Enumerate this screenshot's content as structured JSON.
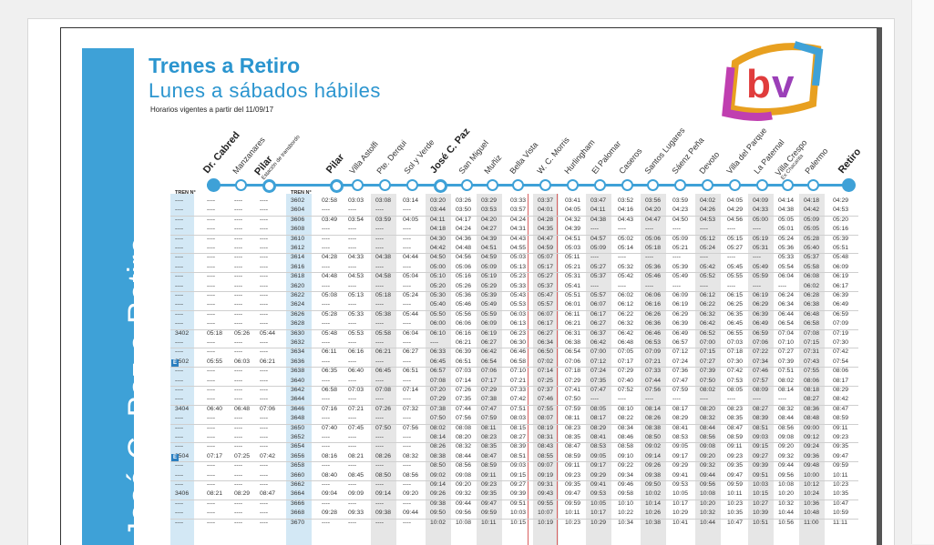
{
  "document": {
    "vertical_title": "José C. Paz a Retiro",
    "title": "Trenes a Retiro",
    "subtitle": "Lunes a sábados hábiles",
    "validity": "Horarios vigentes a partir del 11/09/17",
    "logo_text": "bv"
  },
  "header": {
    "tren_label": "TREN N°"
  },
  "stations": [
    {
      "name": "Dr. Cabred",
      "sub": "",
      "bold": true
    },
    {
      "name": "Manzanares",
      "sub": "",
      "bold": false
    },
    {
      "name": "Pilar",
      "sub": "Estación de transbordo",
      "bold": true
    },
    {
      "name": "Pilar",
      "sub": "",
      "bold": true
    },
    {
      "name": "Villa Astolfi",
      "sub": "",
      "bold": false
    },
    {
      "name": "Pte. Derqui",
      "sub": "",
      "bold": false
    },
    {
      "name": "Sol y Verde",
      "sub": "",
      "bold": false
    },
    {
      "name": "José C. Paz",
      "sub": "",
      "bold": true
    },
    {
      "name": "San Miguel",
      "sub": "",
      "bold": false
    },
    {
      "name": "Muñiz",
      "sub": "",
      "bold": false
    },
    {
      "name": "Bella Vista",
      "sub": "",
      "bold": false
    },
    {
      "name": "W. C. Morris",
      "sub": "",
      "bold": false
    },
    {
      "name": "Hurlingham",
      "sub": "",
      "bold": false
    },
    {
      "name": "El Palomar",
      "sub": "",
      "bold": false
    },
    {
      "name": "Caseros",
      "sub": "",
      "bold": false
    },
    {
      "name": "Santos Lugares",
      "sub": "",
      "bold": false
    },
    {
      "name": "Sáenz Peña",
      "sub": "",
      "bold": false
    },
    {
      "name": "Devoto",
      "sub": "",
      "bold": false
    },
    {
      "name": "Villa del Parque",
      "sub": "",
      "bold": false
    },
    {
      "name": "La Paternal",
      "sub": "",
      "bold": false
    },
    {
      "name": "Villa Crespo",
      "sub": "Ex Chacarita",
      "bold": false
    },
    {
      "name": "Palermo",
      "sub": "",
      "bold": false
    },
    {
      "name": "Retiro",
      "sub": "",
      "bold": true
    }
  ],
  "rows": [
    [
      "----",
      "----",
      "----",
      "----",
      "3602",
      "02:58",
      "03:03",
      "03:08",
      "03:14",
      "03:20",
      "03:26",
      "03:29",
      "03:33",
      "03:37",
      "03:41",
      "03:47",
      "03:52",
      "03:56",
      "03:59",
      "04:02",
      "04:05",
      "04:09",
      "04:14",
      "04:18",
      "04:29"
    ],
    [
      "----",
      "----",
      "----",
      "----",
      "3604",
      "----",
      "----",
      "----",
      "----",
      "03:44",
      "03:50",
      "03:53",
      "03:57",
      "04:01",
      "04:05",
      "04:11",
      "04:16",
      "04:20",
      "04:23",
      "04:26",
      "04:29",
      "04:33",
      "04:38",
      "04:42",
      "04:53"
    ],
    [
      "----",
      "----",
      "----",
      "----",
      "3606",
      "03:49",
      "03:54",
      "03:59",
      "04:05",
      "04:11",
      "04:17",
      "04:20",
      "04:24",
      "04:28",
      "04:32",
      "04:38",
      "04:43",
      "04:47",
      "04:50",
      "04:53",
      "04:56",
      "05:00",
      "05:05",
      "05:09",
      "05:20"
    ],
    [
      "----",
      "----",
      "----",
      "----",
      "3608",
      "----",
      "----",
      "----",
      "----",
      "04:18",
      "04:24",
      "04:27",
      "04:31",
      "04:35",
      "04:39",
      "----",
      "----",
      "----",
      "----",
      "----",
      "----",
      "----",
      "05:01",
      "05:05",
      "05:16"
    ],
    [
      "----",
      "----",
      "----",
      "----",
      "3610",
      "----",
      "----",
      "----",
      "----",
      "04:30",
      "04:36",
      "04:39",
      "04:43",
      "04:47",
      "04:51",
      "04:57",
      "05:02",
      "05:06",
      "05:09",
      "05:12",
      "05:15",
      "05:19",
      "05:24",
      "05:28",
      "05:39"
    ],
    [
      "----",
      "----",
      "----",
      "----",
      "3612",
      "----",
      "----",
      "----",
      "----",
      "04:42",
      "04:48",
      "04:51",
      "04:55",
      "04:59",
      "05:03",
      "05:09",
      "05:14",
      "05:18",
      "05:21",
      "05:24",
      "05:27",
      "05:31",
      "05:36",
      "05:40",
      "05:51"
    ],
    [
      "----",
      "----",
      "----",
      "----",
      "3614",
      "04:28",
      "04:33",
      "04:38",
      "04:44",
      "04:50",
      "04:56",
      "04:59",
      "05:03",
      "05:07",
      "05:11",
      "----",
      "----",
      "----",
      "----",
      "----",
      "----",
      "----",
      "05:33",
      "05:37",
      "05:48"
    ],
    [
      "----",
      "----",
      "----",
      "----",
      "3616",
      "----",
      "----",
      "----",
      "----",
      "05:00",
      "05:06",
      "05:09",
      "05:13",
      "05:17",
      "05:21",
      "05:27",
      "05:32",
      "05:36",
      "05:39",
      "05:42",
      "05:45",
      "05:49",
      "05:54",
      "05:58",
      "06:09"
    ],
    [
      "----",
      "----",
      "----",
      "----",
      "3618",
      "04:48",
      "04:53",
      "04:58",
      "05:04",
      "05:10",
      "05:16",
      "05:19",
      "05:23",
      "05:27",
      "05:31",
      "05:37",
      "05:42",
      "05:46",
      "05:49",
      "05:52",
      "05:55",
      "05:59",
      "06:04",
      "06:08",
      "06:19"
    ],
    [
      "----",
      "----",
      "----",
      "----",
      "3620",
      "----",
      "----",
      "----",
      "----",
      "05:20",
      "05:26",
      "05:29",
      "05:33",
      "05:37",
      "05:41",
      "----",
      "----",
      "----",
      "----",
      "----",
      "----",
      "----",
      "----",
      "06:02",
      "06:17"
    ],
    [
      "----",
      "----",
      "----",
      "----",
      "3622",
      "05:08",
      "05:13",
      "05:18",
      "05:24",
      "05:30",
      "05:36",
      "05:39",
      "05:43",
      "05:47",
      "05:51",
      "05:57",
      "06:02",
      "06:06",
      "06:09",
      "06:12",
      "06:15",
      "06:19",
      "06:24",
      "06:28",
      "06:39"
    ],
    [
      "----",
      "----",
      "----",
      "----",
      "3624",
      "----",
      "----",
      "----",
      "----",
      "05:40",
      "05:46",
      "05:49",
      "05:53",
      "05:57",
      "06:01",
      "06:07",
      "06:12",
      "06:16",
      "06:19",
      "06:22",
      "06:25",
      "06:29",
      "06:34",
      "06:38",
      "06:49"
    ],
    [
      "----",
      "----",
      "----",
      "----",
      "3626",
      "05:28",
      "05:33",
      "05:38",
      "05:44",
      "05:50",
      "05:56",
      "05:59",
      "06:03",
      "06:07",
      "06:11",
      "06:17",
      "06:22",
      "06:26",
      "06:29",
      "06:32",
      "06:35",
      "06:39",
      "06:44",
      "06:48",
      "06:59"
    ],
    [
      "----",
      "----",
      "----",
      "----",
      "3628",
      "----",
      "----",
      "----",
      "----",
      "06:00",
      "06:06",
      "06:09",
      "06:13",
      "06:17",
      "06:21",
      "06:27",
      "06:32",
      "06:36",
      "06:39",
      "06:42",
      "06:45",
      "06:49",
      "06:54",
      "06:58",
      "07:09"
    ],
    [
      "3402",
      "05:18",
      "05:26",
      "05:44",
      "3630",
      "05:48",
      "05:53",
      "05:58",
      "06:04",
      "06:10",
      "06:16",
      "06:19",
      "06:23",
      "06:27",
      "06:31",
      "06:37",
      "06:42",
      "06:46",
      "06:49",
      "06:52",
      "06:55",
      "06:59",
      "07:04",
      "07:08",
      "07:19"
    ],
    [
      "----",
      "----",
      "----",
      "----",
      "3632",
      "----",
      "----",
      "----",
      "----",
      "----",
      "06:21",
      "06:27",
      "06:30",
      "06:34",
      "06:38",
      "06:42",
      "06:48",
      "06:53",
      "06:57",
      "07:00",
      "07:03",
      "07:06",
      "07:10",
      "07:15",
      "07:30"
    ],
    [
      "----",
      "----",
      "----",
      "----",
      "3634",
      "06:11",
      "06:16",
      "06:21",
      "06:27",
      "06:33",
      "06:39",
      "06:42",
      "06:46",
      "06:50",
      "06:54",
      "07:00",
      "07:05",
      "07:09",
      "07:12",
      "07:15",
      "07:18",
      "07:22",
      "07:27",
      "07:31",
      "07:42"
    ],
    [
      "3502",
      "05:55",
      "06:03",
      "06:21",
      "3636",
      "----",
      "----",
      "----",
      "----",
      "06:45",
      "06:51",
      "06:54",
      "06:58",
      "07:02",
      "07:06",
      "07:12",
      "07:17",
      "07:21",
      "07:24",
      "07:27",
      "07:30",
      "07:34",
      "07:39",
      "07:43",
      "07:54"
    ],
    [
      "----",
      "----",
      "----",
      "----",
      "3638",
      "06:35",
      "06:40",
      "06:45",
      "06:51",
      "06:57",
      "07:03",
      "07:06",
      "07:10",
      "07:14",
      "07:18",
      "07:24",
      "07:29",
      "07:33",
      "07:36",
      "07:39",
      "07:42",
      "07:46",
      "07:51",
      "07:55",
      "08:06"
    ],
    [
      "----",
      "----",
      "----",
      "----",
      "3640",
      "----",
      "----",
      "----",
      "----",
      "07:08",
      "07:14",
      "07:17",
      "07:21",
      "07:25",
      "07:29",
      "07:35",
      "07:40",
      "07:44",
      "07:47",
      "07:50",
      "07:53",
      "07:57",
      "08:02",
      "08:06",
      "08:17"
    ],
    [
      "----",
      "----",
      "----",
      "----",
      "3642",
      "06:58",
      "07:03",
      "07:08",
      "07:14",
      "07:20",
      "07:26",
      "07:29",
      "07:33",
      "07:37",
      "07:41",
      "07:47",
      "07:52",
      "07:56",
      "07:59",
      "08:02",
      "08:05",
      "08:09",
      "08:14",
      "08:18",
      "08:29"
    ],
    [
      "----",
      "----",
      "----",
      "----",
      "3644",
      "----",
      "----",
      "----",
      "----",
      "07:29",
      "07:35",
      "07:38",
      "07:42",
      "07:46",
      "07:50",
      "----",
      "----",
      "----",
      "----",
      "----",
      "----",
      "----",
      "----",
      "08:27",
      "08:42"
    ],
    [
      "3404",
      "06:40",
      "06:48",
      "07:06",
      "3646",
      "07:16",
      "07:21",
      "07:26",
      "07:32",
      "07:38",
      "07:44",
      "07:47",
      "07:51",
      "07:55",
      "07:59",
      "08:05",
      "08:10",
      "08:14",
      "08:17",
      "08:20",
      "08:23",
      "08:27",
      "08:32",
      "08:36",
      "08:47"
    ],
    [
      "----",
      "----",
      "----",
      "----",
      "3648",
      "----",
      "----",
      "----",
      "----",
      "07:50",
      "07:56",
      "07:59",
      "08:03",
      "08:07",
      "08:11",
      "08:17",
      "08:22",
      "08:26",
      "08:29",
      "08:32",
      "08:35",
      "08:39",
      "08:44",
      "08:48",
      "08:59"
    ],
    [
      "----",
      "----",
      "----",
      "----",
      "3650",
      "07:40",
      "07:45",
      "07:50",
      "07:56",
      "08:02",
      "08:08",
      "08:11",
      "08:15",
      "08:19",
      "08:23",
      "08:29",
      "08:34",
      "08:38",
      "08:41",
      "08:44",
      "08:47",
      "08:51",
      "08:56",
      "09:00",
      "09:11"
    ],
    [
      "----",
      "----",
      "----",
      "----",
      "3652",
      "----",
      "----",
      "----",
      "----",
      "08:14",
      "08:20",
      "08:23",
      "08:27",
      "08:31",
      "08:35",
      "08:41",
      "08:46",
      "08:50",
      "08:53",
      "08:56",
      "08:59",
      "09:03",
      "09:08",
      "09:12",
      "09:23"
    ],
    [
      "----",
      "----",
      "----",
      "----",
      "3654",
      "----",
      "----",
      "----",
      "----",
      "08:26",
      "08:32",
      "08:35",
      "08:39",
      "08:43",
      "08:47",
      "08:53",
      "08:58",
      "09:02",
      "09:05",
      "09:08",
      "09:11",
      "09:15",
      "09:20",
      "09:24",
      "09:35"
    ],
    [
      "3504",
      "07:17",
      "07:25",
      "07:42",
      "3656",
      "08:16",
      "08:21",
      "08:26",
      "08:32",
      "08:38",
      "08:44",
      "08:47",
      "08:51",
      "08:55",
      "08:59",
      "09:05",
      "09:10",
      "09:14",
      "09:17",
      "09:20",
      "09:23",
      "09:27",
      "09:32",
      "09:36",
      "09:47"
    ],
    [
      "----",
      "----",
      "----",
      "----",
      "3658",
      "----",
      "----",
      "----",
      "----",
      "08:50",
      "08:56",
      "08:59",
      "09:03",
      "09:07",
      "09:11",
      "09:17",
      "09:22",
      "09:26",
      "09:29",
      "09:32",
      "09:35",
      "09:39",
      "09:44",
      "09:48",
      "09:59"
    ],
    [
      "----",
      "----",
      "----",
      "----",
      "3660",
      "08:40",
      "08:45",
      "08:50",
      "08:56",
      "09:02",
      "09:08",
      "09:11",
      "09:15",
      "09:19",
      "09:23",
      "09:29",
      "09:34",
      "09:38",
      "09:41",
      "09:44",
      "09:47",
      "09:51",
      "09:56",
      "10:00",
      "10:11"
    ],
    [
      "----",
      "----",
      "----",
      "----",
      "3662",
      "----",
      "----",
      "----",
      "----",
      "09:14",
      "09:20",
      "09:23",
      "09:27",
      "09:31",
      "09:35",
      "09:41",
      "09:46",
      "09:50",
      "09:53",
      "09:56",
      "09:59",
      "10:03",
      "10:08",
      "10:12",
      "10:23"
    ],
    [
      "3406",
      "08:21",
      "08:29",
      "08:47",
      "3664",
      "09:04",
      "09:09",
      "09:14",
      "09:20",
      "09:26",
      "09:32",
      "09:35",
      "09:39",
      "09:43",
      "09:47",
      "09:53",
      "09:58",
      "10:02",
      "10:05",
      "10:08",
      "10:11",
      "10:15",
      "10:20",
      "10:24",
      "10:35"
    ],
    [
      "----",
      "----",
      "----",
      "----",
      "3666",
      "----",
      "----",
      "----",
      "----",
      "09:38",
      "09:44",
      "09:47",
      "09:51",
      "09:55",
      "09:59",
      "10:05",
      "10:10",
      "10:14",
      "10:17",
      "10:20",
      "10:23",
      "10:27",
      "10:32",
      "10:36",
      "10:47"
    ],
    [
      "----",
      "----",
      "----",
      "----",
      "3668",
      "09:28",
      "09:33",
      "09:38",
      "09:44",
      "09:50",
      "09:56",
      "09:59",
      "10:03",
      "10:07",
      "10:11",
      "10:17",
      "10:22",
      "10:26",
      "10:29",
      "10:32",
      "10:35",
      "10:39",
      "10:44",
      "10:48",
      "10:59"
    ],
    [
      "----",
      "----",
      "----",
      "----",
      "3670",
      "----",
      "----",
      "----",
      "----",
      "10:02",
      "10:08",
      "10:11",
      "10:15",
      "10:19",
      "10:23",
      "10:29",
      "10:34",
      "10:38",
      "10:41",
      "10:44",
      "10:47",
      "10:51",
      "10:56",
      "11:00",
      "11:11"
    ]
  ],
  "badge_rows": [
    17,
    27
  ],
  "badge_label": "E",
  "colors": {
    "accent": "#3ea1d7",
    "shade": "#e6e6e6",
    "blue_shade": "#d3e8f5"
  }
}
